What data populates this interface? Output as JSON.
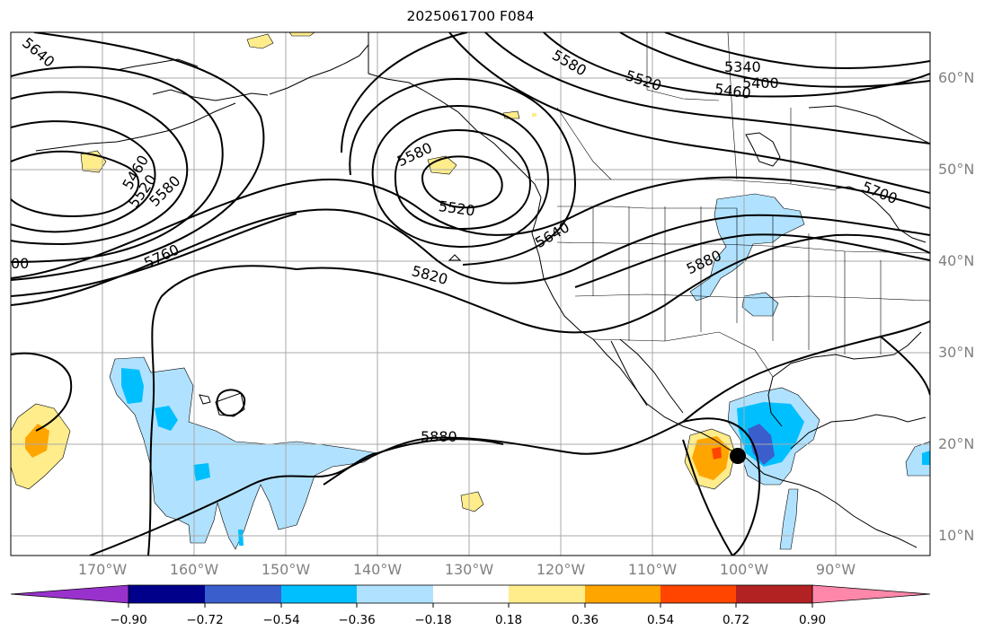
{
  "title": "2025061700 F084",
  "latitude_labels": [
    "60°N",
    "50°N",
    "40°N",
    "30°N",
    "20°N",
    "10°N"
  ],
  "longitude_labels": [
    "170°W",
    "160°W",
    "150°W",
    "140°W",
    "130°W",
    "120°W",
    "110°W",
    "100°W",
    "90°W"
  ],
  "contour_labels": [
    "5640",
    "5460",
    "5520",
    "5580",
    "5760",
    "00",
    "5580",
    "5520",
    "5580",
    "5520",
    "5460",
    "5340",
    "5400",
    "5640",
    "5700",
    "5880",
    "5820",
    "5880"
  ],
  "colorbar": {
    "tick_labels": [
      "−0.90",
      "−0.72",
      "−0.54",
      "−0.36",
      "−0.18",
      "0.18",
      "0.36",
      "0.54",
      "0.72",
      "0.90"
    ],
    "colors": [
      "#9932cc",
      "#00008b",
      "#3a5fcd",
      "#00bfff",
      "#b0e2ff",
      "#ffffff",
      "#ffec8b",
      "#ffa500",
      "#ff4500",
      "#b22222",
      "#ff88aa"
    ]
  },
  "shading_colors": {
    "light_blue": "#b0e2ff",
    "deep_sky_blue": "#00bfff",
    "royal_blue": "#3a5fcd",
    "light_yellow": "#ffec8b",
    "orange": "#ffa500",
    "orange_red": "#ff4500"
  },
  "marker": {
    "name": "storm-center-marker",
    "color": "#000000"
  }
}
